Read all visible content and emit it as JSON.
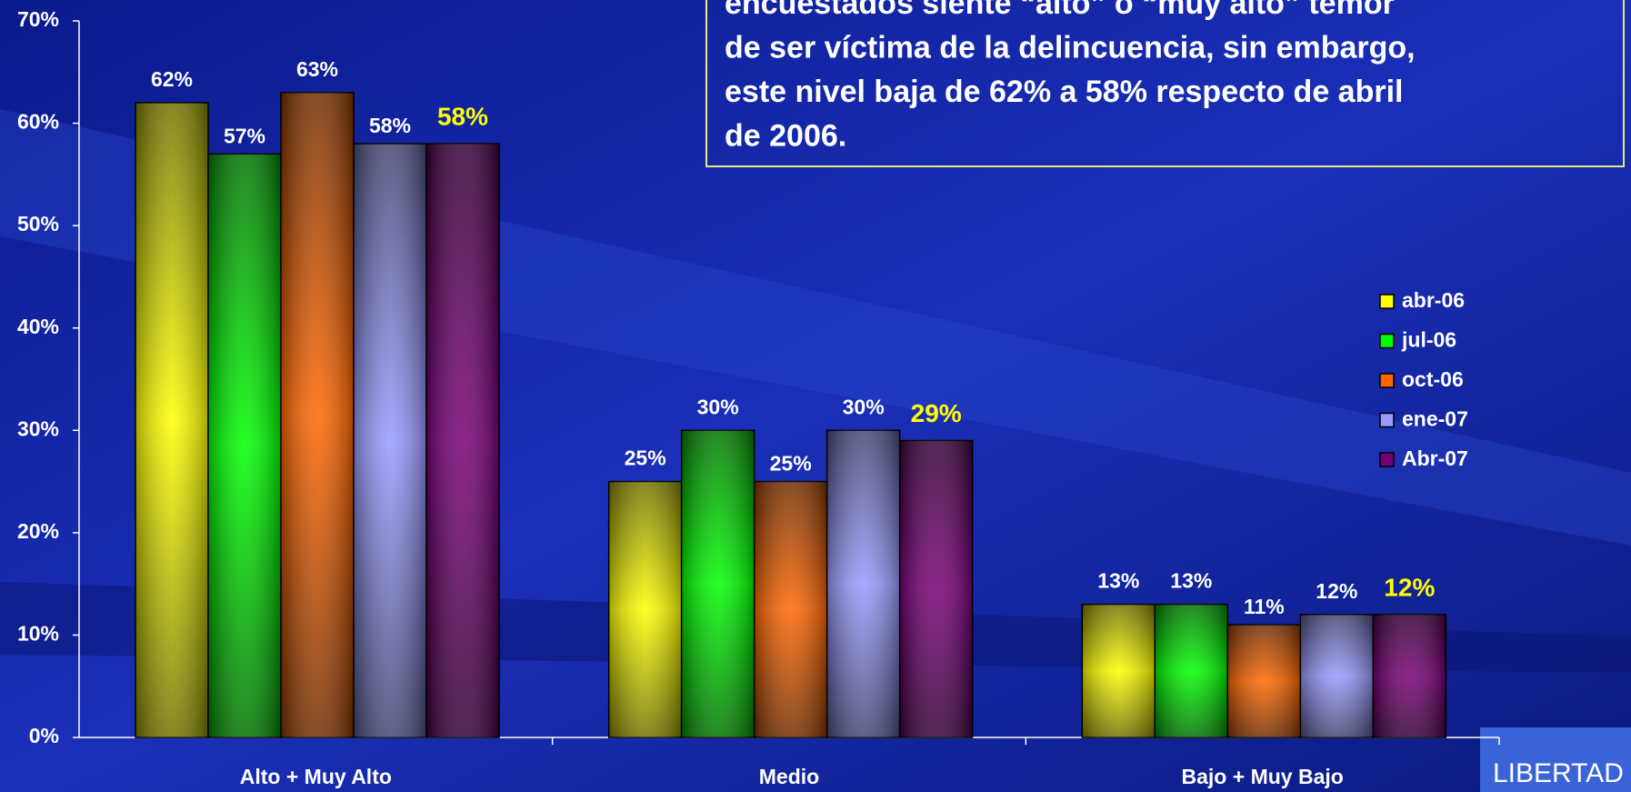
{
  "chart_data": {
    "type": "bar",
    "annotation": [
      "encuestados siente “alto” o “muy alto” temor",
      "de ser víctima de la delincuencia, sin embargo,",
      "este nivel baja de 62% a 58% respecto de abril",
      "de 2006."
    ],
    "logo": "LIBERTAD",
    "categories": [
      "Alto + Muy Alto",
      "Medio",
      "Bajo + Muy Bajo"
    ],
    "series": [
      {
        "name": "abr-06",
        "color": "#ffff00",
        "label_color": "#ffffff",
        "values": [
          62,
          25,
          13
        ],
        "value_labels": [
          "62%",
          "25%",
          "13%"
        ]
      },
      {
        "name": "jul-06",
        "color": "#00ff00",
        "label_color": "#ffffff",
        "values": [
          57,
          30,
          13
        ],
        "value_labels": [
          "57%",
          "30%",
          "13%"
        ]
      },
      {
        "name": "oct-06",
        "color": "#ff6600",
        "label_color": "#ffffff",
        "values": [
          63,
          25,
          11
        ],
        "value_labels": [
          "63%",
          "25%",
          "11%"
        ]
      },
      {
        "name": "ene-07",
        "color": "#9999ff",
        "label_color": "#ffffff",
        "values": [
          58,
          30,
          12
        ],
        "value_labels": [
          "58%",
          "30%",
          "12%"
        ]
      },
      {
        "name": "Abr-07",
        "color": "#770077",
        "label_color": "#ffff00",
        "values": [
          58,
          29,
          12
        ],
        "value_labels": [
          "58%",
          "29%",
          "12%"
        ]
      }
    ],
    "ylim": [
      0,
      70
    ],
    "yticks": [
      {
        "value": 0,
        "label": "0%"
      },
      {
        "value": 10,
        "label": "10%"
      },
      {
        "value": 20,
        "label": "20%"
      },
      {
        "value": 30,
        "label": "30%"
      },
      {
        "value": 40,
        "label": "40%"
      },
      {
        "value": 50,
        "label": "50%"
      },
      {
        "value": 60,
        "label": "60%"
      },
      {
        "value": 70,
        "label": "70%"
      }
    ],
    "legend": "right"
  }
}
